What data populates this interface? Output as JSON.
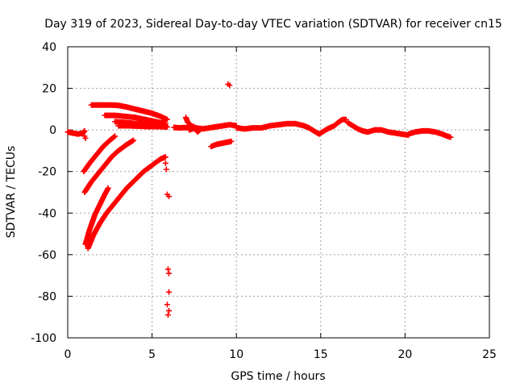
{
  "chart_data": {
    "type": "scatter",
    "title": "Day 319 of 2023, Sidereal Day-to-day VTEC variation (SDTVAR) for receiver cn15",
    "xlabel": "GPS time / hours",
    "ylabel": "SDTVAR / TECUs",
    "xlim": [
      0,
      25
    ],
    "ylim": [
      -100,
      40
    ],
    "xticks": [
      0,
      5,
      10,
      15,
      20,
      25
    ],
    "yticks": [
      -100,
      -80,
      -60,
      -40,
      -20,
      0,
      20,
      40
    ],
    "xtick_labels": [
      "0",
      "5",
      "10",
      "15",
      "20",
      "25"
    ],
    "ytick_labels": [
      "-100",
      "-80",
      "-60",
      "-40",
      "-20",
      "0",
      "20",
      "40"
    ],
    "grid": true,
    "marker": "+",
    "color": "#ff0000",
    "segments": [
      {
        "name": "baseline-start",
        "points": [
          [
            0.0,
            -1
          ],
          [
            0.3,
            -1.5
          ],
          [
            0.6,
            -2
          ],
          [
            0.9,
            -1.5
          ],
          [
            1.0,
            -0.5
          ]
        ]
      },
      {
        "name": "early-drop",
        "points": [
          [
            1.0,
            -3
          ],
          [
            1.05,
            -4
          ]
        ]
      },
      {
        "name": "upper-arc",
        "points": [
          [
            1.4,
            12
          ],
          [
            2.0,
            12
          ],
          [
            2.5,
            12
          ],
          [
            3.0,
            11.8
          ],
          [
            3.5,
            11
          ],
          [
            4.0,
            10
          ],
          [
            4.5,
            9
          ],
          [
            5.0,
            8
          ],
          [
            5.5,
            6.5
          ],
          [
            5.9,
            5
          ]
        ]
      },
      {
        "name": "mid-arc-1",
        "points": [
          [
            2.2,
            7
          ],
          [
            2.8,
            7
          ],
          [
            3.4,
            6.5
          ],
          [
            4.0,
            6
          ],
          [
            4.6,
            5
          ],
          [
            5.2,
            4
          ],
          [
            5.8,
            3
          ]
        ]
      },
      {
        "name": "mid-arc-2",
        "points": [
          [
            2.8,
            4
          ],
          [
            3.5,
            3.5
          ],
          [
            4.2,
            3
          ],
          [
            5.0,
            2.5
          ],
          [
            5.8,
            2
          ]
        ]
      },
      {
        "name": "flat-arc",
        "points": [
          [
            3.0,
            2
          ],
          [
            3.6,
            2
          ],
          [
            4.2,
            1.8
          ],
          [
            4.8,
            1.6
          ],
          [
            5.4,
            1.6
          ],
          [
            5.9,
            1.4
          ]
        ]
      },
      {
        "name": "rising-1",
        "points": [
          [
            0.95,
            -20
          ],
          [
            1.3,
            -16
          ],
          [
            1.7,
            -12
          ],
          [
            2.1,
            -8
          ],
          [
            2.5,
            -5
          ],
          [
            2.8,
            -3
          ]
        ]
      },
      {
        "name": "rising-2",
        "points": [
          [
            1.0,
            -30
          ],
          [
            1.4,
            -25
          ],
          [
            1.8,
            -21
          ],
          [
            2.2,
            -17
          ],
          [
            2.6,
            -13
          ],
          [
            3.0,
            -10
          ],
          [
            3.5,
            -7
          ],
          [
            3.9,
            -5
          ]
        ]
      },
      {
        "name": "rising-3",
        "points": [
          [
            1.05,
            -55
          ],
          [
            1.3,
            -48
          ],
          [
            1.6,
            -41
          ],
          [
            1.9,
            -36
          ],
          [
            2.2,
            -31
          ],
          [
            2.4,
            -28
          ]
        ]
      },
      {
        "name": "rising-4",
        "points": [
          [
            1.2,
            -57
          ],
          [
            1.5,
            -51
          ],
          [
            1.9,
            -45
          ],
          [
            2.3,
            -40
          ],
          [
            2.7,
            -36
          ],
          [
            3.1,
            -32
          ],
          [
            3.5,
            -28
          ],
          [
            4.0,
            -24
          ],
          [
            4.5,
            -20
          ],
          [
            5.0,
            -17
          ],
          [
            5.5,
            -14
          ],
          [
            5.8,
            -13
          ]
        ]
      },
      {
        "name": "scatter-drop",
        "points": [
          [
            5.8,
            -16
          ],
          [
            5.85,
            -19
          ],
          [
            5.9,
            -31
          ],
          [
            6.0,
            -32
          ],
          [
            5.95,
            -67
          ],
          [
            6.0,
            -69
          ],
          [
            6.0,
            -78
          ],
          [
            5.9,
            -84
          ],
          [
            6.0,
            -87
          ],
          [
            5.95,
            -89
          ]
        ]
      },
      {
        "name": "gap-join",
        "points": [
          [
            6.3,
            1.2
          ],
          [
            6.6,
            1
          ],
          [
            6.9,
            1.1
          ],
          [
            7.2,
            1
          ]
        ]
      },
      {
        "name": "spike-cluster",
        "points": [
          [
            7.0,
            6
          ],
          [
            7.1,
            4
          ],
          [
            7.2,
            3
          ],
          [
            7.3,
            2
          ],
          [
            7.5,
            1.5
          ],
          [
            7.7,
            -1
          ],
          [
            7.9,
            0.5
          ]
        ]
      },
      {
        "name": "segment-8-10",
        "points": [
          [
            7.2,
            0
          ],
          [
            7.6,
            1
          ],
          [
            8.0,
            0.5
          ],
          [
            8.4,
            1
          ],
          [
            8.8,
            1.5
          ],
          [
            9.2,
            2
          ],
          [
            9.6,
            2.5
          ],
          [
            10.0,
            2
          ]
        ]
      },
      {
        "name": "lower-patch",
        "points": [
          [
            8.5,
            -8
          ],
          [
            8.8,
            -7
          ],
          [
            9.1,
            -6.5
          ],
          [
            9.4,
            -6
          ],
          [
            9.7,
            -5.5
          ]
        ]
      },
      {
        "name": "outlier-high",
        "points": [
          [
            9.5,
            22
          ],
          [
            9.6,
            21.5
          ]
        ]
      },
      {
        "name": "segment-10-16",
        "points": [
          [
            10.0,
            1
          ],
          [
            10.5,
            0.5
          ],
          [
            11.0,
            1
          ],
          [
            11.5,
            1
          ],
          [
            12.0,
            2
          ],
          [
            12.5,
            2.5
          ],
          [
            13.0,
            3
          ],
          [
            13.5,
            3
          ],
          [
            14.0,
            2
          ],
          [
            14.3,
            1
          ],
          [
            14.6,
            -0.5
          ],
          [
            14.9,
            -2
          ],
          [
            15.1,
            -1
          ],
          [
            15.4,
            0.5
          ],
          [
            15.8,
            2
          ],
          [
            16.1,
            4
          ],
          [
            16.3,
            5
          ],
          [
            16.5,
            5
          ]
        ]
      },
      {
        "name": "segment-16-20",
        "points": [
          [
            16.6,
            3.5
          ],
          [
            16.9,
            2
          ],
          [
            17.2,
            0.5
          ],
          [
            17.5,
            -0.5
          ],
          [
            17.8,
            -1
          ],
          [
            18.2,
            0
          ],
          [
            18.6,
            0
          ],
          [
            19.0,
            -1
          ],
          [
            19.4,
            -1.5
          ],
          [
            19.8,
            -2
          ],
          [
            20.2,
            -2.5
          ]
        ]
      },
      {
        "name": "segment-20-23",
        "points": [
          [
            20.2,
            -2
          ],
          [
            20.6,
            -1
          ],
          [
            21.0,
            -0.5
          ],
          [
            21.4,
            -0.5
          ],
          [
            21.8,
            -1
          ],
          [
            22.2,
            -2
          ],
          [
            22.5,
            -3
          ],
          [
            22.7,
            -3.5
          ]
        ]
      }
    ]
  }
}
